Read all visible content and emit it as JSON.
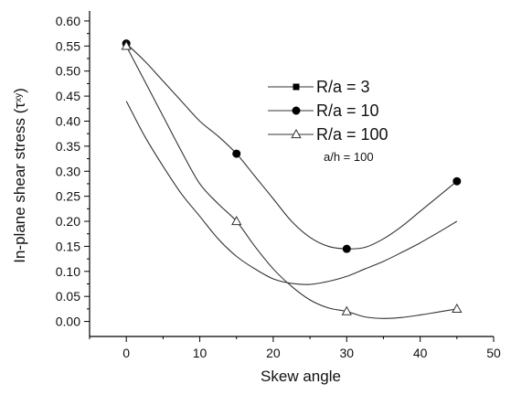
{
  "chart_data": {
    "type": "line",
    "xlabel": "Skew angle",
    "ylabel": "In-plane shear stress (τ",
    "ylabel_subscript": "xy",
    "ylabel_close": ")",
    "xlim": [
      -5,
      50
    ],
    "ylim": [
      -0.03,
      0.62
    ],
    "xticks": [
      0,
      10,
      20,
      30,
      40,
      50
    ],
    "yticks": [
      0.0,
      0.05,
      0.1,
      0.15,
      0.2,
      0.25,
      0.3,
      0.35,
      0.4,
      0.45,
      0.5,
      0.55,
      0.6
    ],
    "legend_position": "top-right",
    "annotation": "a/h = 100",
    "series": [
      {
        "name": "R/a = 3",
        "marker": "square",
        "x": [
          0,
          15,
          30,
          45
        ],
        "y": [
          0.44,
          0.13,
          0.09,
          0.2
        ],
        "show_markers": false,
        "curve_x": [
          0,
          2.5,
          5,
          7.5,
          10,
          12.5,
          15,
          17.5,
          20,
          22.5,
          25,
          27.5,
          30,
          32.5,
          35,
          37.5,
          40,
          42.5,
          45
        ],
        "curve_y": [
          0.44,
          0.37,
          0.31,
          0.255,
          0.21,
          0.165,
          0.13,
          0.105,
          0.085,
          0.076,
          0.074,
          0.08,
          0.09,
          0.105,
          0.12,
          0.138,
          0.157,
          0.178,
          0.2
        ]
      },
      {
        "name": "R/a = 10",
        "marker": "circle",
        "x": [
          0,
          15,
          30,
          45
        ],
        "y": [
          0.555,
          0.335,
          0.145,
          0.28
        ],
        "show_markers": true,
        "curve_x": [
          0,
          2.5,
          5,
          7.5,
          10,
          12.5,
          15,
          17.5,
          20,
          22.5,
          25,
          27.5,
          30,
          32.5,
          35,
          37.5,
          40,
          42.5,
          45
        ],
        "curve_y": [
          0.555,
          0.52,
          0.48,
          0.44,
          0.4,
          0.37,
          0.335,
          0.29,
          0.245,
          0.2,
          0.168,
          0.15,
          0.145,
          0.148,
          0.165,
          0.19,
          0.22,
          0.25,
          0.28
        ]
      },
      {
        "name": "R/a = 100",
        "marker": "triangle",
        "x": [
          0,
          15,
          30,
          45
        ],
        "y": [
          0.55,
          0.2,
          0.02,
          0.025
        ],
        "show_markers": true,
        "curve_x": [
          0,
          2.5,
          5,
          7.5,
          10,
          12.5,
          15,
          17.5,
          20,
          22.5,
          25,
          27.5,
          30,
          32.5,
          35,
          37.5,
          40,
          42.5,
          45
        ],
        "curve_y": [
          0.55,
          0.48,
          0.41,
          0.34,
          0.275,
          0.235,
          0.2,
          0.15,
          0.105,
          0.07,
          0.043,
          0.027,
          0.02,
          0.009,
          0.006,
          0.008,
          0.013,
          0.019,
          0.025
        ]
      }
    ]
  }
}
